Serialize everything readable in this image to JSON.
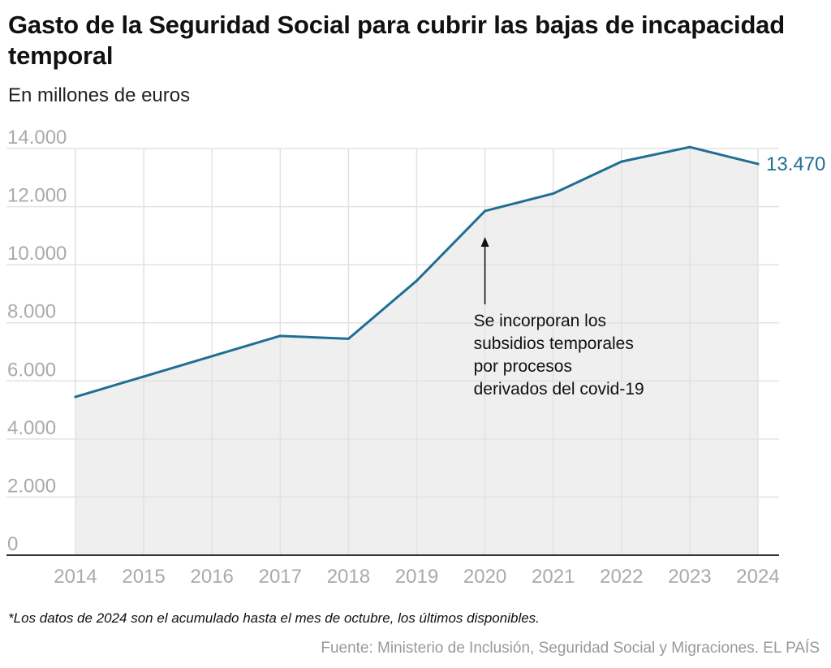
{
  "title": "Gasto de la Seguridad Social para cubrir las bajas de incapacidad temporal",
  "subtitle": "En millones de euros",
  "note": "*Los datos de 2024 son el acumulado hasta el mes de octubre, los últimos disponibles.",
  "source": "Fuente: Ministerio de Inclusión, Seguridad Social y Migraciones. EL PAÍS",
  "colors": {
    "line": "#1f6f94",
    "area": "#efefef",
    "grid": "#e2e2e2",
    "tick": "#aaaaaa",
    "axis": "#333333"
  },
  "chart_data": {
    "type": "area",
    "x": [
      "2014",
      "2015",
      "2016",
      "2017",
      "2018",
      "2019",
      "2020",
      "2021",
      "2022",
      "2023",
      "2024"
    ],
    "series": [
      {
        "values": [
          5450,
          6150,
          6850,
          7550,
          7450,
          9450,
          11850,
          12450,
          13550,
          14050,
          13470
        ]
      }
    ],
    "yticks": [
      0,
      2000,
      4000,
      6000,
      8000,
      10000,
      12000,
      14000
    ],
    "ytick_labels": [
      "0",
      "2.000",
      "4.000",
      "6.000",
      "8.000",
      "10.000",
      "12.000",
      "14.000"
    ],
    "ylim": [
      0,
      14000
    ],
    "grid": true,
    "end_label": "13.470",
    "annotation": {
      "x": "2020",
      "lines": [
        "Se incorporan los",
        "subsidios temporales",
        "por procesos",
        "derivados del covid-19"
      ]
    }
  }
}
